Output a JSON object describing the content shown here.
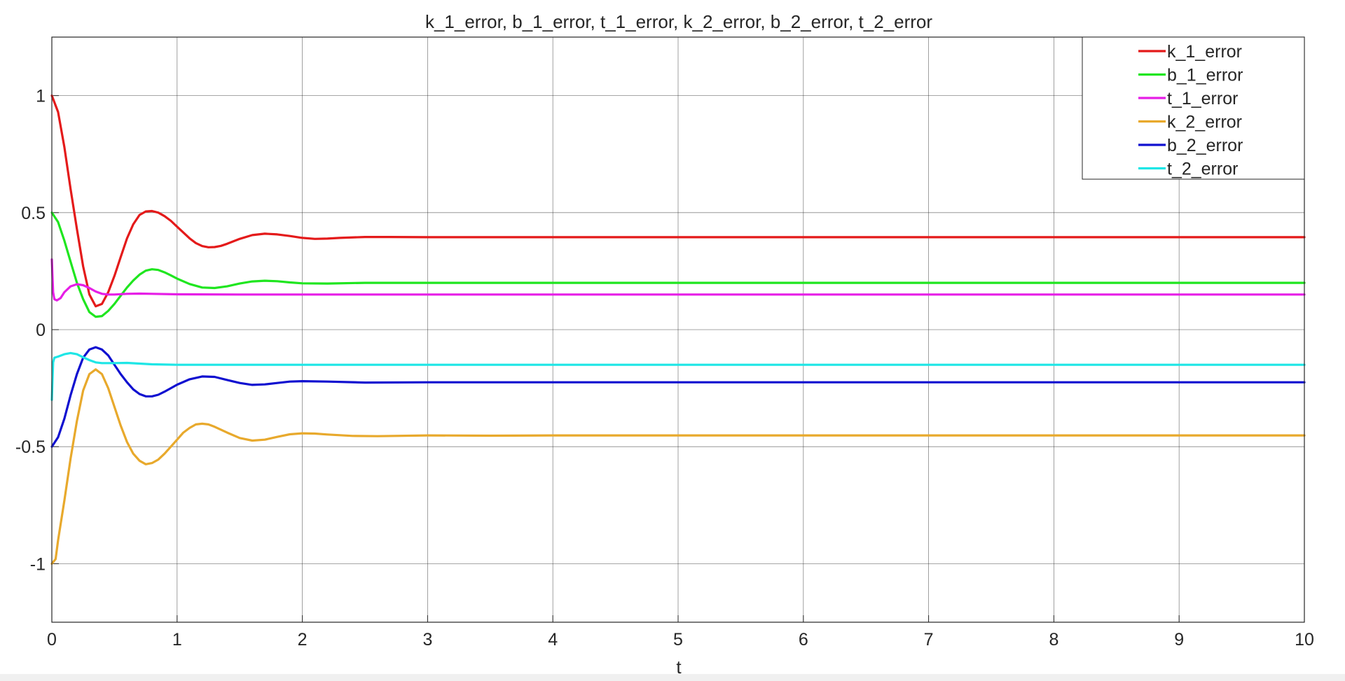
{
  "chart_data": {
    "type": "line",
    "title": "k_1_error, b_1_error, t_1_error, k_2_error, b_2_error, t_2_error",
    "xlabel": "t",
    "ylabel": "",
    "xlim": [
      0,
      10
    ],
    "ylim": [
      -1.25,
      1.25
    ],
    "xticks": [
      0,
      1,
      2,
      3,
      4,
      5,
      6,
      7,
      8,
      9,
      10
    ],
    "xtick_labels": [
      "0",
      "1",
      "2",
      "3",
      "4",
      "5",
      "6",
      "7",
      "8",
      "9",
      "10"
    ],
    "yticks": [
      1,
      0.5,
      0,
      -0.5,
      -1
    ],
    "ytick_labels": [
      "1",
      "0.5",
      "0",
      "-0.5",
      "-1"
    ],
    "grid": true,
    "legend_position": "top-right",
    "series": [
      {
        "name": "k_1_error",
        "color": "#e41a1a",
        "points": [
          [
            0,
            1.0
          ],
          [
            0.05,
            0.93
          ],
          [
            0.1,
            0.78
          ],
          [
            0.15,
            0.6
          ],
          [
            0.2,
            0.43
          ],
          [
            0.25,
            0.27
          ],
          [
            0.3,
            0.15
          ],
          [
            0.35,
            0.1
          ],
          [
            0.4,
            0.11
          ],
          [
            0.45,
            0.16
          ],
          [
            0.5,
            0.23
          ],
          [
            0.55,
            0.31
          ],
          [
            0.6,
            0.39
          ],
          [
            0.65,
            0.45
          ],
          [
            0.7,
            0.49
          ],
          [
            0.75,
            0.505
          ],
          [
            0.8,
            0.507
          ],
          [
            0.85,
            0.5
          ],
          [
            0.9,
            0.485
          ],
          [
            0.95,
            0.465
          ],
          [
            1.0,
            0.44
          ],
          [
            1.05,
            0.415
          ],
          [
            1.1,
            0.39
          ],
          [
            1.15,
            0.37
          ],
          [
            1.2,
            0.357
          ],
          [
            1.25,
            0.352
          ],
          [
            1.3,
            0.353
          ],
          [
            1.35,
            0.358
          ],
          [
            1.4,
            0.367
          ],
          [
            1.5,
            0.388
          ],
          [
            1.6,
            0.404
          ],
          [
            1.7,
            0.41
          ],
          [
            1.8,
            0.407
          ],
          [
            1.9,
            0.4
          ],
          [
            2.0,
            0.392
          ],
          [
            2.1,
            0.388
          ],
          [
            2.2,
            0.389
          ],
          [
            2.3,
            0.392
          ],
          [
            2.5,
            0.396
          ],
          [
            2.7,
            0.396
          ],
          [
            3.0,
            0.395
          ],
          [
            4.0,
            0.395
          ],
          [
            5.0,
            0.395
          ],
          [
            6.0,
            0.395
          ],
          [
            7.0,
            0.395
          ],
          [
            8.0,
            0.395
          ],
          [
            9.0,
            0.395
          ],
          [
            10.0,
            0.395
          ]
        ]
      },
      {
        "name": "b_1_error",
        "color": "#1fe61f",
        "points": [
          [
            0,
            0.5
          ],
          [
            0.05,
            0.46
          ],
          [
            0.1,
            0.38
          ],
          [
            0.15,
            0.29
          ],
          [
            0.2,
            0.2
          ],
          [
            0.25,
            0.13
          ],
          [
            0.3,
            0.075
          ],
          [
            0.35,
            0.055
          ],
          [
            0.4,
            0.058
          ],
          [
            0.45,
            0.08
          ],
          [
            0.5,
            0.11
          ],
          [
            0.55,
            0.145
          ],
          [
            0.6,
            0.18
          ],
          [
            0.65,
            0.21
          ],
          [
            0.7,
            0.235
          ],
          [
            0.75,
            0.252
          ],
          [
            0.8,
            0.258
          ],
          [
            0.85,
            0.255
          ],
          [
            0.9,
            0.245
          ],
          [
            0.95,
            0.232
          ],
          [
            1.0,
            0.218
          ],
          [
            1.1,
            0.195
          ],
          [
            1.2,
            0.18
          ],
          [
            1.3,
            0.178
          ],
          [
            1.4,
            0.185
          ],
          [
            1.5,
            0.197
          ],
          [
            1.6,
            0.206
          ],
          [
            1.7,
            0.209
          ],
          [
            1.8,
            0.207
          ],
          [
            1.9,
            0.202
          ],
          [
            2.0,
            0.198
          ],
          [
            2.2,
            0.197
          ],
          [
            2.5,
            0.2
          ],
          [
            3.0,
            0.2
          ],
          [
            4.0,
            0.2
          ],
          [
            5.0,
            0.2
          ],
          [
            6.0,
            0.2
          ],
          [
            7.0,
            0.2
          ],
          [
            8.0,
            0.2
          ],
          [
            9.0,
            0.2
          ],
          [
            10.0,
            0.2
          ]
        ]
      },
      {
        "name": "t_1_error",
        "color": "#e61ee6",
        "points": [
          [
            0,
            0.3
          ],
          [
            0.01,
            0.16
          ],
          [
            0.02,
            0.13
          ],
          [
            0.04,
            0.125
          ],
          [
            0.07,
            0.135
          ],
          [
            0.1,
            0.16
          ],
          [
            0.15,
            0.185
          ],
          [
            0.2,
            0.194
          ],
          [
            0.25,
            0.19
          ],
          [
            0.3,
            0.178
          ],
          [
            0.35,
            0.163
          ],
          [
            0.4,
            0.153
          ],
          [
            0.45,
            0.15
          ],
          [
            0.5,
            0.15
          ],
          [
            0.6,
            0.153
          ],
          [
            0.7,
            0.154
          ],
          [
            0.8,
            0.153
          ],
          [
            1.0,
            0.151
          ],
          [
            1.5,
            0.15
          ],
          [
            2.0,
            0.15
          ],
          [
            3.0,
            0.15
          ],
          [
            4.0,
            0.15
          ],
          [
            5.0,
            0.15
          ],
          [
            6.0,
            0.15
          ],
          [
            7.0,
            0.15
          ],
          [
            8.0,
            0.15
          ],
          [
            9.0,
            0.15
          ],
          [
            10.0,
            0.15
          ]
        ]
      },
      {
        "name": "k_2_error",
        "color": "#e8a92c",
        "points": [
          [
            0,
            -1.0
          ],
          [
            0.03,
            -0.98
          ],
          [
            0.05,
            -0.9
          ],
          [
            0.1,
            -0.73
          ],
          [
            0.15,
            -0.55
          ],
          [
            0.2,
            -0.39
          ],
          [
            0.25,
            -0.26
          ],
          [
            0.3,
            -0.19
          ],
          [
            0.35,
            -0.17
          ],
          [
            0.4,
            -0.19
          ],
          [
            0.45,
            -0.25
          ],
          [
            0.5,
            -0.33
          ],
          [
            0.55,
            -0.41
          ],
          [
            0.6,
            -0.48
          ],
          [
            0.65,
            -0.53
          ],
          [
            0.7,
            -0.56
          ],
          [
            0.75,
            -0.575
          ],
          [
            0.8,
            -0.57
          ],
          [
            0.85,
            -0.555
          ],
          [
            0.9,
            -0.53
          ],
          [
            0.95,
            -0.5
          ],
          [
            1.0,
            -0.47
          ],
          [
            1.05,
            -0.44
          ],
          [
            1.1,
            -0.42
          ],
          [
            1.15,
            -0.405
          ],
          [
            1.2,
            -0.402
          ],
          [
            1.25,
            -0.405
          ],
          [
            1.3,
            -0.415
          ],
          [
            1.4,
            -0.44
          ],
          [
            1.5,
            -0.463
          ],
          [
            1.6,
            -0.474
          ],
          [
            1.7,
            -0.47
          ],
          [
            1.8,
            -0.458
          ],
          [
            1.9,
            -0.447
          ],
          [
            2.0,
            -0.443
          ],
          [
            2.1,
            -0.444
          ],
          [
            2.2,
            -0.448
          ],
          [
            2.4,
            -0.454
          ],
          [
            2.6,
            -0.455
          ],
          [
            3.0,
            -0.452
          ],
          [
            3.5,
            -0.453
          ],
          [
            4.0,
            -0.452
          ],
          [
            5.0,
            -0.452
          ],
          [
            6.0,
            -0.452
          ],
          [
            7.0,
            -0.452
          ],
          [
            8.0,
            -0.452
          ],
          [
            9.0,
            -0.452
          ],
          [
            10.0,
            -0.452
          ]
        ]
      },
      {
        "name": "b_2_error",
        "color": "#1010d0",
        "points": [
          [
            0,
            -0.5
          ],
          [
            0.05,
            -0.46
          ],
          [
            0.1,
            -0.38
          ],
          [
            0.15,
            -0.28
          ],
          [
            0.2,
            -0.19
          ],
          [
            0.25,
            -0.12
          ],
          [
            0.3,
            -0.085
          ],
          [
            0.35,
            -0.075
          ],
          [
            0.4,
            -0.085
          ],
          [
            0.45,
            -0.11
          ],
          [
            0.5,
            -0.15
          ],
          [
            0.55,
            -0.19
          ],
          [
            0.6,
            -0.225
          ],
          [
            0.65,
            -0.255
          ],
          [
            0.7,
            -0.275
          ],
          [
            0.75,
            -0.285
          ],
          [
            0.8,
            -0.285
          ],
          [
            0.85,
            -0.278
          ],
          [
            0.9,
            -0.265
          ],
          [
            0.95,
            -0.25
          ],
          [
            1.0,
            -0.235
          ],
          [
            1.1,
            -0.212
          ],
          [
            1.2,
            -0.2
          ],
          [
            1.3,
            -0.202
          ],
          [
            1.4,
            -0.215
          ],
          [
            1.5,
            -0.228
          ],
          [
            1.6,
            -0.236
          ],
          [
            1.7,
            -0.234
          ],
          [
            1.8,
            -0.228
          ],
          [
            1.9,
            -0.222
          ],
          [
            2.0,
            -0.22
          ],
          [
            2.2,
            -0.222
          ],
          [
            2.5,
            -0.226
          ],
          [
            3.0,
            -0.225
          ],
          [
            4.0,
            -0.225
          ],
          [
            5.0,
            -0.225
          ],
          [
            6.0,
            -0.225
          ],
          [
            7.0,
            -0.225
          ],
          [
            8.0,
            -0.225
          ],
          [
            9.0,
            -0.225
          ],
          [
            10.0,
            -0.225
          ]
        ]
      },
      {
        "name": "t_2_error",
        "color": "#1ee6e6",
        "points": [
          [
            0,
            -0.3
          ],
          [
            0.01,
            -0.14
          ],
          [
            0.02,
            -0.12
          ],
          [
            0.05,
            -0.115
          ],
          [
            0.1,
            -0.105
          ],
          [
            0.15,
            -0.1
          ],
          [
            0.2,
            -0.105
          ],
          [
            0.25,
            -0.118
          ],
          [
            0.3,
            -0.13
          ],
          [
            0.35,
            -0.14
          ],
          [
            0.4,
            -0.143
          ],
          [
            0.5,
            -0.143
          ],
          [
            0.6,
            -0.142
          ],
          [
            0.7,
            -0.145
          ],
          [
            0.8,
            -0.148
          ],
          [
            1.0,
            -0.15
          ],
          [
            1.5,
            -0.15
          ],
          [
            2.0,
            -0.15
          ],
          [
            3.0,
            -0.15
          ],
          [
            4.0,
            -0.15
          ],
          [
            5.0,
            -0.15
          ],
          [
            6.0,
            -0.15
          ],
          [
            7.0,
            -0.15
          ],
          [
            8.0,
            -0.15
          ],
          [
            9.0,
            -0.15
          ],
          [
            10.0,
            -0.15
          ]
        ]
      }
    ]
  }
}
